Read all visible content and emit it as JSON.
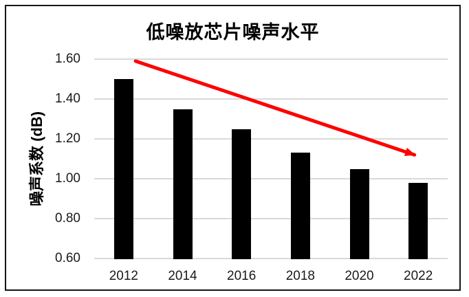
{
  "frame": {
    "border_color": "#141414",
    "background_color": "#ffffff"
  },
  "chart_data": {
    "type": "bar",
    "title": "低噪放芯片噪声水平",
    "xlabel": "",
    "ylabel": "噪声系数 (dB)",
    "categories": [
      "2012",
      "2014",
      "2016",
      "2018",
      "2020",
      "2022"
    ],
    "values": [
      1.5,
      1.35,
      1.25,
      1.13,
      1.05,
      0.98
    ],
    "ylim": [
      0.6,
      1.6
    ],
    "yticks": [
      {
        "label": "1.60",
        "value": 1.6
      },
      {
        "label": "1.40",
        "value": 1.4
      },
      {
        "label": "1.20",
        "value": 1.2
      },
      {
        "label": "1.00",
        "value": 1.0
      },
      {
        "label": "0.80",
        "value": 0.8
      },
      {
        "label": "0.60",
        "value": 0.6
      }
    ],
    "grid": true,
    "legend": false,
    "bar_color": "#000000",
    "gridline_color": "#d9d9d9",
    "text_color": "#000000",
    "annotation": {
      "type": "trend-arrow",
      "color": "#fe0000",
      "start": {
        "x_frac": 0.117,
        "value": 1.59
      },
      "end": {
        "x_frac": 0.906,
        "value": 1.12
      }
    }
  }
}
